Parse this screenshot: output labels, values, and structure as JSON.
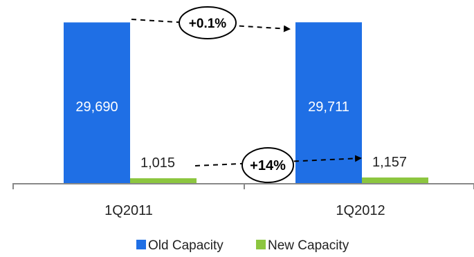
{
  "chart_data": {
    "type": "bar",
    "categories": [
      "1Q2011",
      "1Q2012"
    ],
    "series": [
      {
        "name": "Old Capacity",
        "color": "#1f6fe5",
        "values": [
          29690,
          29711
        ],
        "value_labels": [
          "29,690",
          "29,711"
        ]
      },
      {
        "name": "New Capacity",
        "color": "#8cc63f",
        "values": [
          1015,
          1157
        ],
        "value_labels": [
          "1,015",
          "1,157"
        ]
      }
    ],
    "annotations": [
      {
        "text": "+0.1%",
        "series": "Old Capacity"
      },
      {
        "text": "+14%",
        "series": "New Capacity"
      }
    ],
    "legend_position": "bottom",
    "grid": false,
    "ylim": [
      0,
      30000
    ]
  }
}
